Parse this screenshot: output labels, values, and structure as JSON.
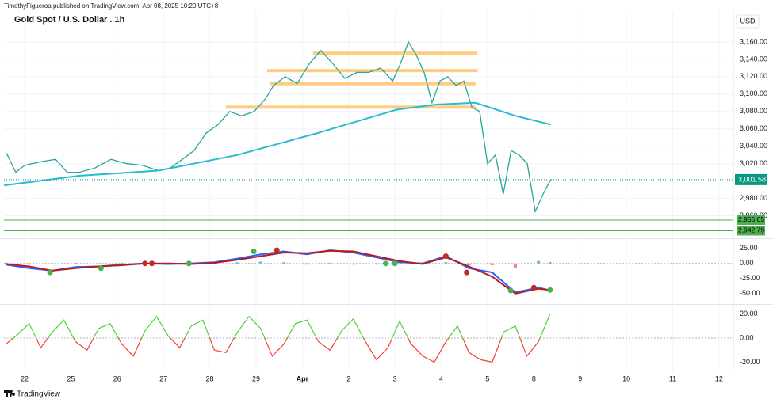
{
  "header": {
    "publisher": "TimothyFigueroa published on TradingView.com, Apr 08, 2025 10:20 UTC+8",
    "currency": "USD",
    "footer": "TradingView"
  },
  "chart_data": [
    {
      "type": "line",
      "title": "Gold Spot / U.S. Dollar . 1h",
      "xlim": [
        -0.445,
        15.31
      ],
      "xticks": [
        {
          "value": 0,
          "label": "22"
        },
        {
          "value": 1,
          "label": "25"
        },
        {
          "value": 2,
          "label": "26"
        },
        {
          "value": 3,
          "label": "27"
        },
        {
          "value": 4,
          "label": "28"
        },
        {
          "value": 5,
          "label": "29"
        },
        {
          "value": 6,
          "label": "Apr"
        },
        {
          "value": 7,
          "label": "2"
        },
        {
          "value": 8,
          "label": "3"
        },
        {
          "value": 9,
          "label": "4"
        },
        {
          "value": 10,
          "label": "5"
        },
        {
          "value": 11,
          "label": "8"
        },
        {
          "value": 12,
          "label": "9"
        },
        {
          "value": 13,
          "label": "10"
        },
        {
          "value": 14,
          "label": "11"
        },
        {
          "value": 15,
          "label": "12"
        }
      ],
      "ylim": [
        2935,
        3190
      ],
      "yticks": [
        {
          "value": 3160,
          "label": "3,160.00"
        },
        {
          "value": 3140,
          "label": "3,140.00"
        },
        {
          "value": 3120,
          "label": "3,120.00"
        },
        {
          "value": 3100,
          "label": "3,100.00"
        },
        {
          "value": 3080,
          "label": "3,080.00"
        },
        {
          "value": 3060,
          "label": "3,060.00"
        },
        {
          "value": 3040,
          "label": "3,040.00"
        },
        {
          "value": 3020,
          "label": "3,020.00"
        },
        {
          "value": 3000,
          "label": "3,000.00"
        },
        {
          "value": 2980,
          "label": "2,980.00"
        },
        {
          "value": 2960,
          "label": "2,960.00"
        }
      ],
      "grid": true,
      "series": [
        {
          "color": "#26a69a",
          "x": [
            -0.39,
            -0.19,
            0,
            0.33,
            0.67,
            0.92,
            1.18,
            1.52,
            1.87,
            2.21,
            2.55,
            2.89,
            3.15,
            3.41,
            3.66,
            3.92,
            4.18,
            4.43,
            4.69,
            4.96,
            5.21,
            5.38,
            5.63,
            5.89,
            6.15,
            6.4,
            6.66,
            6.92,
            7.18,
            7.43,
            7.69,
            7.95,
            8.12,
            8.29,
            8.46,
            8.63,
            8.8,
            8.97,
            9.14,
            9.32,
            9.49,
            9.66,
            9.83,
            10.0,
            10.17,
            10.34,
            10.51,
            10.68,
            10.86,
            11.03,
            11.2,
            11.37
          ],
          "values": [
            3032,
            3010,
            3018,
            3022,
            3025,
            3010,
            3010,
            3015,
            3025,
            3020,
            3018,
            3012,
            3015,
            3025,
            3035,
            3055,
            3065,
            3080,
            3075,
            3080,
            3095,
            3110,
            3120,
            3112,
            3135,
            3150,
            3135,
            3118,
            3125,
            3125,
            3130,
            3115,
            3135,
            3160,
            3145,
            3125,
            3090,
            3115,
            3120,
            3110,
            3115,
            3085,
            3080,
            3020,
            3030,
            2985,
            3035,
            3030,
            3020,
            2965,
            2985,
            3002
          ]
        },
        {
          "color": "#26bcd0",
          "x": [
            -0.44,
            1.18,
            2.89,
            4.6,
            6.32,
            8.03,
            8.89,
            9.74,
            10.6,
            11.37
          ],
          "values": [
            2995,
            3006,
            3012,
            3030,
            3055,
            3082,
            3088,
            3090,
            3075,
            3065
          ]
        }
      ],
      "level_color": "#ffcc80",
      "levels": [
        {
          "value": 3147,
          "from": 6.23,
          "to": 9.78
        },
        {
          "value": 3127,
          "from": 5.24,
          "to": 9.79
        },
        {
          "value": 3112,
          "from": 5.31,
          "to": 9.74
        },
        {
          "value": 3085,
          "from": 4.35,
          "to": 9.74
        }
      ],
      "hline_color": "#4caf50",
      "hlines": [
        {
          "value": 2955.05,
          "label": "2,955.05"
        },
        {
          "value": 2942.79,
          "label": "2,942.79"
        }
      ],
      "last": {
        "value": 3001.58,
        "label": "3,001.58",
        "color": "#089981"
      }
    },
    {
      "type": "macd",
      "xlim": [
        -0.445,
        15.31
      ],
      "ylim": [
        -66,
        39
      ],
      "yticks": [
        {
          "value": 25,
          "label": "25.00"
        },
        {
          "value": 0,
          "label": "0.00"
        },
        {
          "value": -25,
          "label": "-25.00"
        },
        {
          "value": -50,
          "label": "-50.00"
        }
      ],
      "x": [
        -0.4,
        0.1,
        0.6,
        1.1,
        1.6,
        2.1,
        2.6,
        3.1,
        3.6,
        4.1,
        4.6,
        5.1,
        5.6,
        6.1,
        6.6,
        7.1,
        7.6,
        8.1,
        8.6,
        9.1,
        9.6,
        10.1,
        10.6,
        11.1,
        11.35
      ],
      "series": [
        {
          "color": "#2962ff",
          "values": [
            -2,
            -8,
            -12,
            -6,
            -5,
            -2,
            0,
            -1,
            0,
            2,
            8,
            15,
            20,
            15,
            22,
            18,
            10,
            2,
            0,
            12,
            -8,
            -15,
            -48,
            -40,
            -45
          ]
        },
        {
          "color": "#b71c1c",
          "values": [
            -1,
            -5,
            -12,
            -8,
            -5,
            -3,
            0,
            0,
            -1,
            1,
            6,
            12,
            18,
            17,
            21,
            20,
            12,
            4,
            -1,
            10,
            -5,
            -22,
            -50,
            -42,
            -44
          ]
        }
      ],
      "histogram": {
        "color": "#26a69a",
        "negative_color": "#ef5350",
        "values": [
          1,
          -2,
          0,
          1,
          0,
          1,
          0,
          -1,
          1,
          1,
          2,
          3,
          2,
          -2,
          1,
          -2,
          -2,
          -2,
          1,
          2,
          -3,
          -3,
          -8,
          4,
          2
        ]
      },
      "signals": {
        "x": [
          0.55,
          1.65,
          2.6,
          2.75,
          3.55,
          4.95,
          5.45,
          7.8,
          8.0,
          9.1,
          9.55,
          10.5,
          11.0,
          11.35
        ],
        "values": [
          -15,
          -8,
          0,
          0,
          0,
          20,
          22,
          0,
          0,
          12,
          -15,
          -45,
          -40,
          -44
        ],
        "colors": [
          "#4caf50",
          "#4caf50",
          "#c62828",
          "#c62828",
          "#4caf50",
          "#4caf50",
          "#c62828",
          "#4caf50",
          "#4caf50",
          "#c62828",
          "#c62828",
          "#4caf50",
          "#c62828",
          "#4caf50"
        ]
      }
    },
    {
      "type": "oscillator",
      "xlim": [
        -0.445,
        15.31
      ],
      "ylim": [
        -25,
        27
      ],
      "yticks": [
        {
          "value": 20,
          "label": "20.00"
        },
        {
          "value": 0,
          "label": "0.00"
        },
        {
          "value": -20,
          "label": "-20.00"
        }
      ],
      "color": "#4cd137",
      "negative_color": "#f44336",
      "x": [
        -0.4,
        -0.15,
        0.1,
        0.35,
        0.6,
        0.85,
        1.1,
        1.35,
        1.6,
        1.85,
        2.1,
        2.35,
        2.6,
        2.85,
        3.1,
        3.35,
        3.6,
        3.85,
        4.1,
        4.35,
        4.6,
        4.85,
        5.1,
        5.35,
        5.6,
        5.85,
        6.1,
        6.35,
        6.6,
        6.85,
        7.1,
        7.35,
        7.6,
        7.85,
        8.1,
        8.35,
        8.6,
        8.85,
        9.1,
        9.35,
        9.6,
        9.85,
        10.1,
        10.35,
        10.6,
        10.85,
        11.1,
        11.35
      ],
      "values": [
        -5,
        3,
        12,
        -8,
        5,
        15,
        -3,
        -10,
        8,
        12,
        -5,
        -15,
        6,
        18,
        2,
        -8,
        10,
        15,
        -10,
        -12,
        5,
        18,
        8,
        -15,
        -5,
        12,
        15,
        -3,
        -10,
        6,
        16,
        -2,
        -18,
        -8,
        14,
        -5,
        -15,
        -20,
        -3,
        10,
        -12,
        -18,
        -20,
        5,
        10,
        -15,
        -3,
        20
      ]
    }
  ]
}
